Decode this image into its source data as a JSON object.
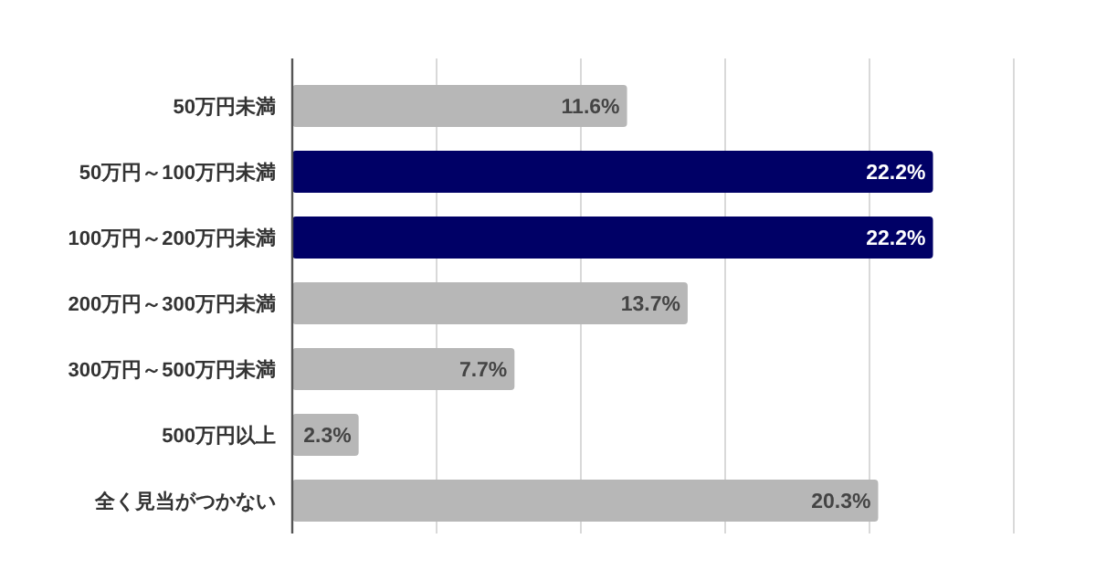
{
  "chart_data": {
    "type": "bar",
    "orientation": "horizontal",
    "categories": [
      "50万円未満",
      "50万円～100万円未満",
      "100万円～200万円未満",
      "200万円～300万円未満",
      "300万円～500万円未満",
      "500万円以上",
      "全く見当がつかない"
    ],
    "values": [
      11.6,
      22.2,
      22.2,
      13.7,
      7.7,
      2.3,
      20.3
    ],
    "colors": [
      "#b7b7b7",
      "#000066",
      "#000066",
      "#b7b7b7",
      "#b7b7b7",
      "#b7b7b7",
      "#b7b7b7"
    ],
    "value_labels": [
      "11.6%",
      "22.2%",
      "22.2%",
      "13.7%",
      "7.7%",
      "2.3%",
      "20.3%"
    ],
    "xlim": [
      0,
      25
    ],
    "xticks": [
      {
        "value": 0,
        "label": null
      },
      {
        "value": 5,
        "label": null
      },
      {
        "value": 10,
        "label": null
      },
      {
        "value": 15,
        "label": null
      },
      {
        "value": 20,
        "label": null
      },
      {
        "value": 25,
        "label": null
      }
    ],
    "grid": "x",
    "tick_labels": "y"
  }
}
